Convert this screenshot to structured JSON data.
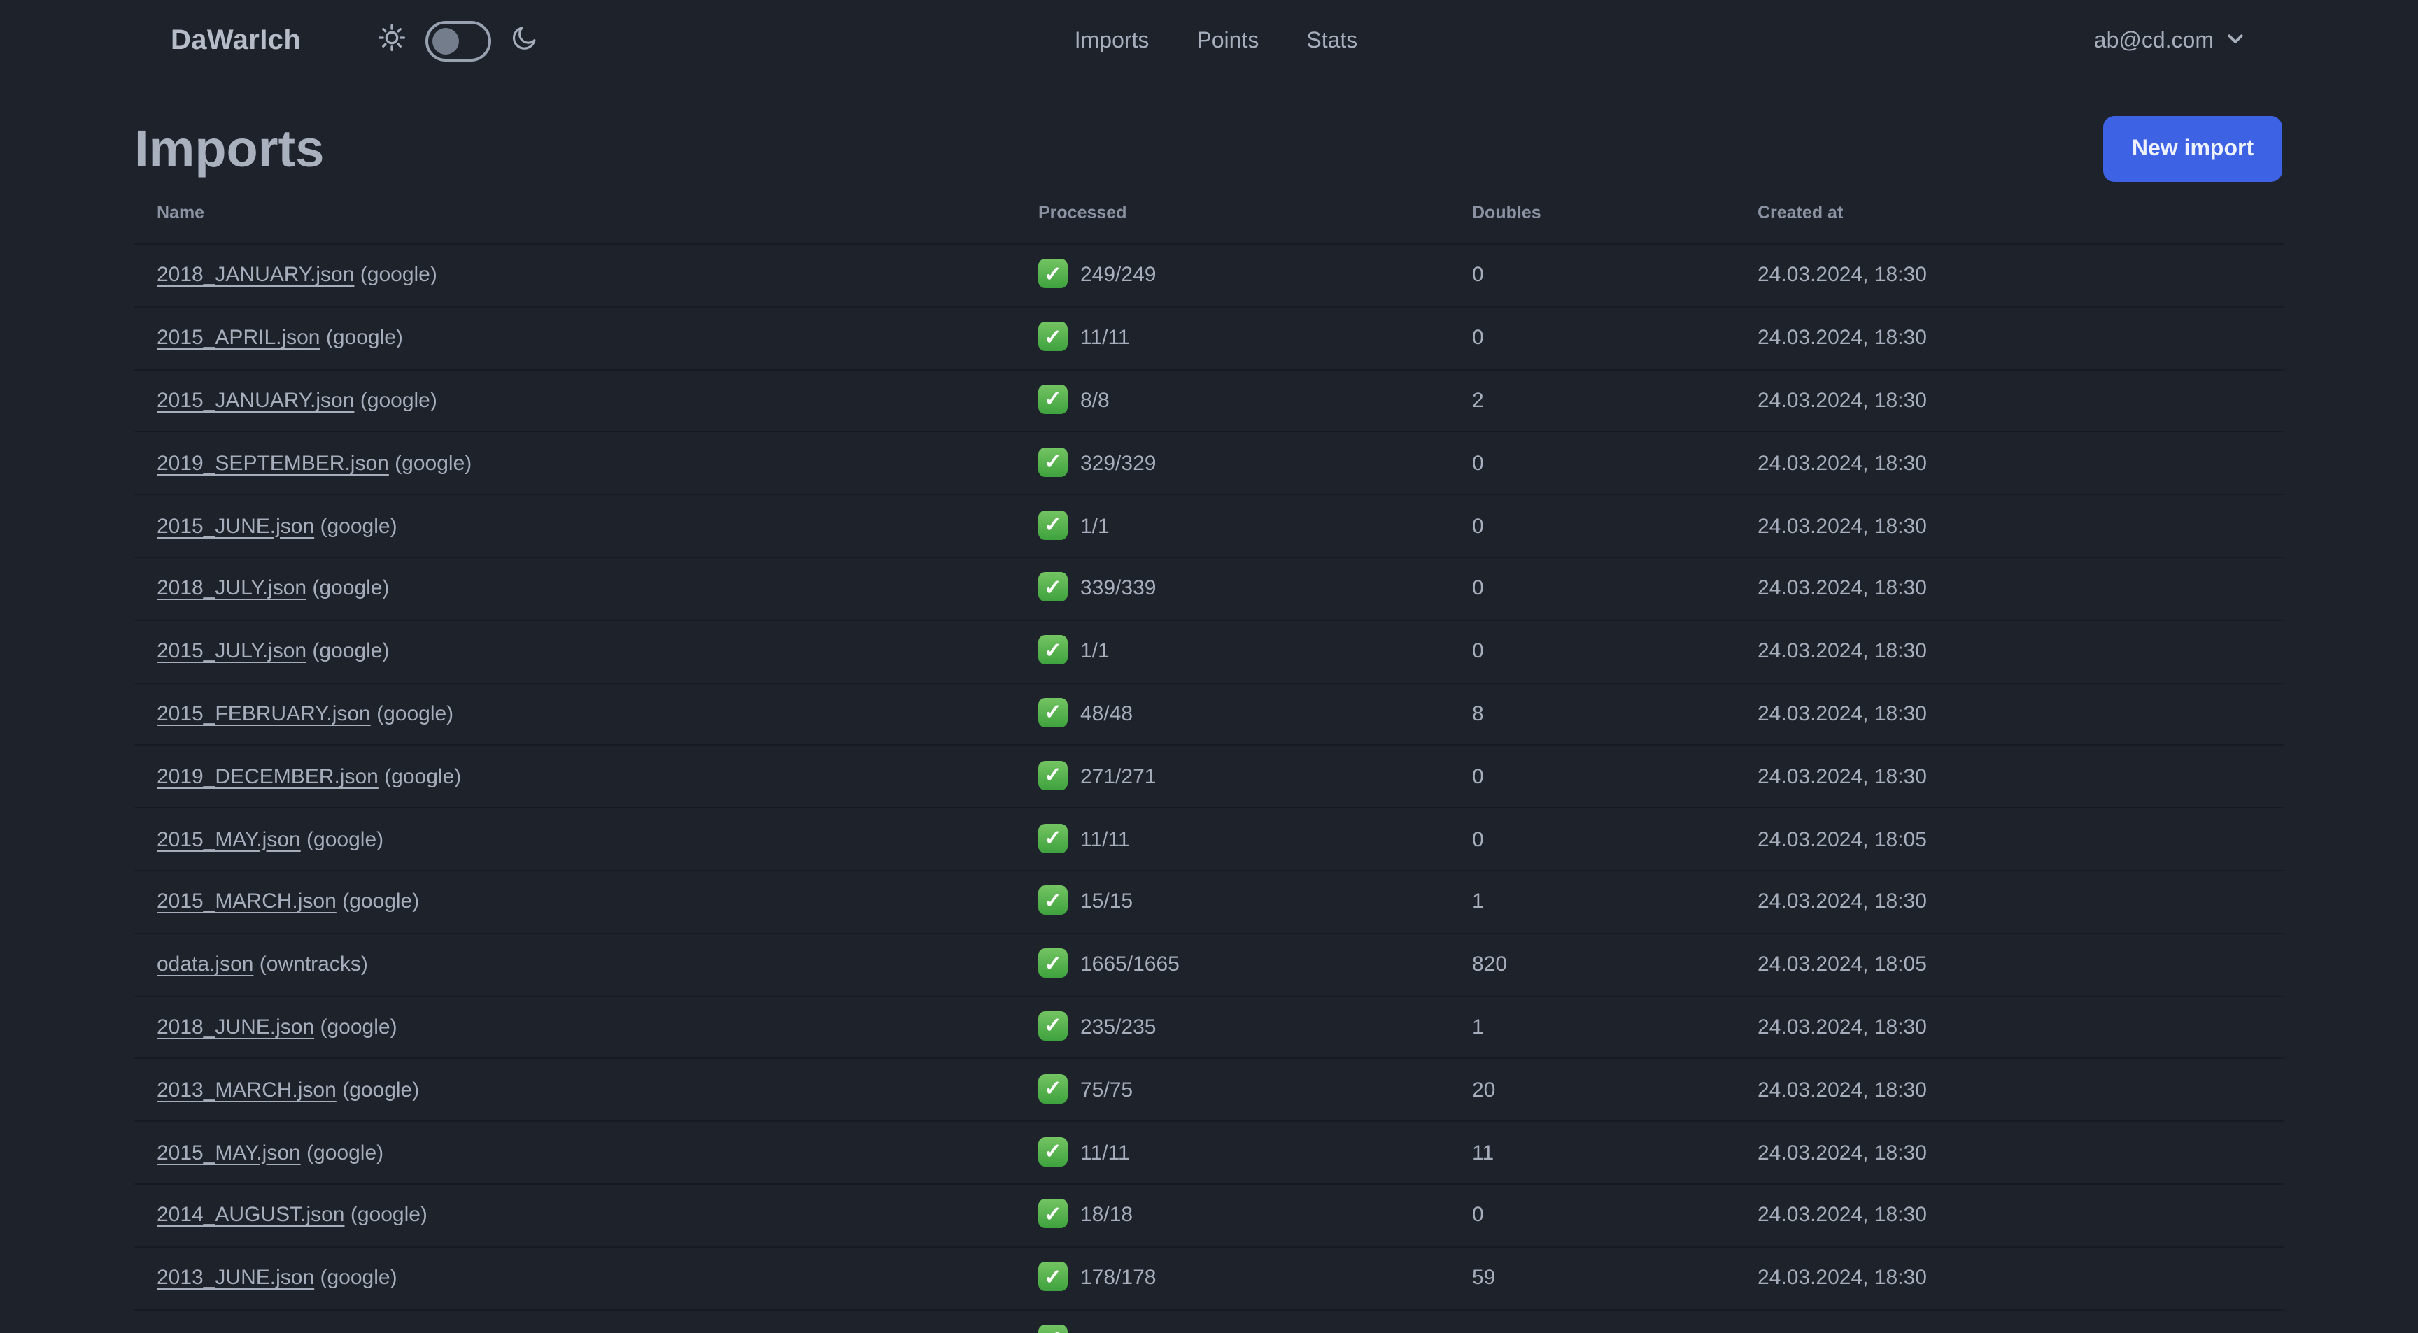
{
  "brand": "DaWarIch",
  "theme_toggle": {
    "state": "off",
    "sun_icon": "sun",
    "moon_icon": "moon"
  },
  "nav": {
    "items": [
      {
        "label": "Imports"
      },
      {
        "label": "Points"
      },
      {
        "label": "Stats"
      }
    ]
  },
  "user": {
    "email": "ab@cd.com",
    "chevron_icon": "chevron-down"
  },
  "page": {
    "title": "Imports",
    "new_import_label": "New import"
  },
  "table": {
    "columns": [
      "Name",
      "Processed",
      "Doubles",
      "Created at"
    ],
    "check_glyph": "✓",
    "rows": [
      {
        "name": "2018_JANUARY.json",
        "source": "google",
        "processed": "249/249",
        "doubles": "0",
        "created_at": "24.03.2024, 18:30"
      },
      {
        "name": "2015_APRIL.json",
        "source": "google",
        "processed": "11/11",
        "doubles": "0",
        "created_at": "24.03.2024, 18:30"
      },
      {
        "name": "2015_JANUARY.json",
        "source": "google",
        "processed": "8/8",
        "doubles": "2",
        "created_at": "24.03.2024, 18:30"
      },
      {
        "name": "2019_SEPTEMBER.json",
        "source": "google",
        "processed": "329/329",
        "doubles": "0",
        "created_at": "24.03.2024, 18:30"
      },
      {
        "name": "2015_JUNE.json",
        "source": "google",
        "processed": "1/1",
        "doubles": "0",
        "created_at": "24.03.2024, 18:30"
      },
      {
        "name": "2018_JULY.json",
        "source": "google",
        "processed": "339/339",
        "doubles": "0",
        "created_at": "24.03.2024, 18:30"
      },
      {
        "name": "2015_JULY.json",
        "source": "google",
        "processed": "1/1",
        "doubles": "0",
        "created_at": "24.03.2024, 18:30"
      },
      {
        "name": "2015_FEBRUARY.json",
        "source": "google",
        "processed": "48/48",
        "doubles": "8",
        "created_at": "24.03.2024, 18:30"
      },
      {
        "name": "2019_DECEMBER.json",
        "source": "google",
        "processed": "271/271",
        "doubles": "0",
        "created_at": "24.03.2024, 18:30"
      },
      {
        "name": "2015_MAY.json",
        "source": "google",
        "processed": "11/11",
        "doubles": "0",
        "created_at": "24.03.2024, 18:05"
      },
      {
        "name": "2015_MARCH.json",
        "source": "google",
        "processed": "15/15",
        "doubles": "1",
        "created_at": "24.03.2024, 18:30"
      },
      {
        "name": "odata.json",
        "source": "owntracks",
        "processed": "1665/1665",
        "doubles": "820",
        "created_at": "24.03.2024, 18:05"
      },
      {
        "name": "2018_JUNE.json",
        "source": "google",
        "processed": "235/235",
        "doubles": "1",
        "created_at": "24.03.2024, 18:30"
      },
      {
        "name": "2013_MARCH.json",
        "source": "google",
        "processed": "75/75",
        "doubles": "20",
        "created_at": "24.03.2024, 18:30"
      },
      {
        "name": "2015_MAY.json",
        "source": "google",
        "processed": "11/11",
        "doubles": "11",
        "created_at": "24.03.2024, 18:30"
      },
      {
        "name": "2014_AUGUST.json",
        "source": "google",
        "processed": "18/18",
        "doubles": "0",
        "created_at": "24.03.2024, 18:30"
      },
      {
        "name": "2013_JUNE.json",
        "source": "google",
        "processed": "178/178",
        "doubles": "59",
        "created_at": "24.03.2024, 18:30"
      },
      {
        "partial": true,
        "processed_check_only": true
      }
    ]
  },
  "colors": {
    "background": "#1d222b",
    "text": "#a6adbb",
    "header_text": "#8b93a2",
    "divider": "#171b22",
    "primary_button": "#3d62e3",
    "check_green": "#4caf50"
  }
}
